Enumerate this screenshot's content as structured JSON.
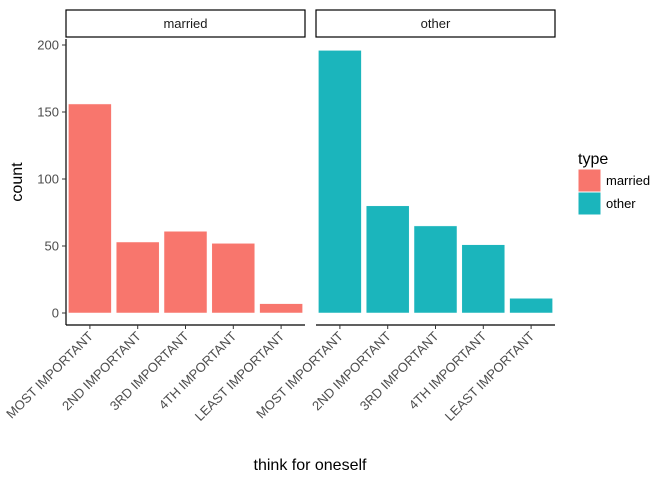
{
  "chart_data": {
    "type": "bar",
    "categories": [
      "MOST IMPORTANT",
      "2ND IMPORTANT",
      "3RD IMPORTANT",
      "4TH IMPORTANT",
      "LEAST IMPORTANT"
    ],
    "facets": [
      {
        "label": "married",
        "series": "married",
        "values": [
          156,
          53,
          61,
          52,
          7
        ]
      },
      {
        "label": "other",
        "series": "other",
        "values": [
          196,
          80,
          65,
          51,
          11
        ]
      }
    ],
    "series": [
      {
        "name": "married",
        "color": "#F8766D"
      },
      {
        "name": "other",
        "color": "#1BB5BC"
      }
    ],
    "xlabel": "think for oneself",
    "ylabel": "count",
    "ylim": [
      0,
      205
    ],
    "yticks": [
      0,
      50,
      100,
      150,
      200
    ],
    "grid": false,
    "legend": {
      "title": "type",
      "position": "right"
    }
  }
}
